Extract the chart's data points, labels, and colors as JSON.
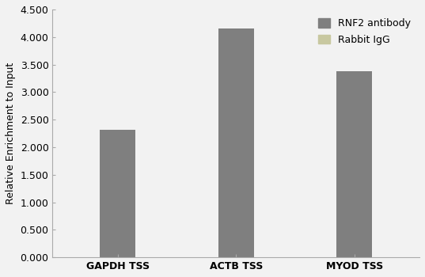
{
  "categories": [
    "GAPDH TSS",
    "ACTB TSS",
    "MYOD TSS"
  ],
  "rnf2_values": [
    2.32,
    4.15,
    3.38
  ],
  "bar_color_rnf2": "#7f7f7f",
  "bar_color_igg": "#c8c8a0",
  "ylabel": "Relative Enrichment to Input",
  "ylim": [
    0,
    4.5
  ],
  "yticks": [
    0.0,
    0.5,
    1.0,
    1.5,
    2.0,
    2.5,
    3.0,
    3.5,
    4.0,
    4.5
  ],
  "ytick_labels": [
    "0.000",
    "0.500",
    "1.000",
    "1.500",
    "2.000",
    "2.500",
    "3.000",
    "3.500",
    "4.000",
    "4.500"
  ],
  "legend_labels": [
    "RNF2 antibody",
    "Rabbit IgG"
  ],
  "bar_width": 0.3,
  "background_color": "#f2f2f2",
  "font_size": 9,
  "ylabel_fontsize": 9,
  "tick_color": "#aaaaaa",
  "spine_color": "#aaaaaa"
}
